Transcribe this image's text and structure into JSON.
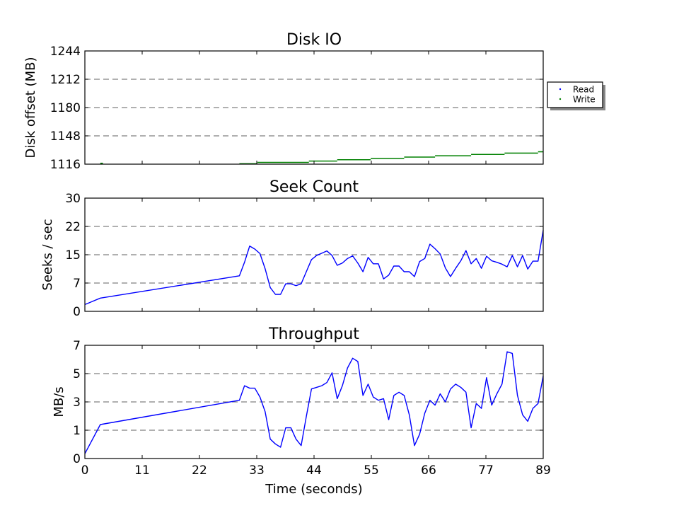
{
  "chart_data": [
    {
      "type": "scatter",
      "title": "Disk IO",
      "ylabel": "Disk offset (MB)",
      "xlabel": "",
      "xlim": [
        0,
        89
      ],
      "ylim": [
        1116,
        1244
      ],
      "yticks": [
        "1116",
        "1148",
        "1180",
        "1212",
        "1244"
      ],
      "ytick_values": [
        1116,
        1148,
        1180,
        1212,
        1244
      ],
      "grid": true,
      "legend": {
        "placement": "outside-right",
        "entries": [
          {
            "label": "Read",
            "color": "#0000ff"
          },
          {
            "label": "Write",
            "color": "#008000"
          }
        ]
      },
      "series": [
        {
          "name": "Read",
          "color": "#0000ff",
          "segments": []
        },
        {
          "name": "Write",
          "color": "#008000",
          "segments": [
            [
              3.0,
              3.5,
              1117.0
            ],
            [
              3.1,
              3.4,
              1116.2
            ],
            [
              30.0,
              33.5,
              1116.5
            ],
            [
              33.5,
              43.5,
              1118.0
            ],
            [
              43.5,
              49.0,
              1119.5
            ],
            [
              49.0,
              55.5,
              1121.0
            ],
            [
              55.5,
              62.0,
              1122.5
            ],
            [
              62.0,
              68.0,
              1124.0
            ],
            [
              68.0,
              75.0,
              1125.5
            ],
            [
              75.0,
              81.5,
              1127.0
            ],
            [
              81.5,
              88.0,
              1128.5
            ],
            [
              88.0,
              89.0,
              1130.0
            ]
          ]
        }
      ]
    },
    {
      "type": "line",
      "title": "Seek Count",
      "ylabel": "Seeks / sec",
      "xlabel": "",
      "xlim": [
        0,
        89
      ],
      "ylim": [
        0,
        30
      ],
      "yticks": [
        "0",
        "7",
        "15",
        "22",
        "30"
      ],
      "ytick_values": [
        0,
        7.5,
        15,
        22.5,
        30
      ],
      "grid": true,
      "series": [
        {
          "color": "#0000ff",
          "x": [
            0,
            3,
            30,
            31,
            32,
            33,
            34,
            35,
            36,
            37,
            38,
            39,
            40,
            41,
            42,
            43,
            44,
            45,
            46,
            47,
            48,
            49,
            50,
            51,
            52,
            53,
            54,
            55,
            56,
            57,
            58,
            59,
            60,
            61,
            62,
            63,
            64,
            65,
            66,
            67,
            68,
            69,
            70,
            71,
            72,
            73,
            74,
            75,
            76,
            77,
            78,
            79,
            80,
            81,
            82,
            83,
            84,
            85,
            86,
            87,
            88,
            89
          ],
          "y": [
            1.8,
            3.5,
            9.4,
            13,
            17.3,
            16.5,
            15.3,
            11.3,
            6.3,
            4.5,
            4.5,
            7.3,
            7.3,
            6.8,
            7.3,
            10.5,
            13.7,
            14.8,
            15.4,
            16,
            14.8,
            12.2,
            12.8,
            14,
            14.7,
            12.8,
            10.5,
            14.3,
            12.6,
            12.6,
            8.6,
            9.6,
            12,
            12,
            10.5,
            10.5,
            9.2,
            13.2,
            14,
            17.8,
            16.6,
            15.2,
            11.5,
            9.2,
            11.4,
            13.4,
            16.1,
            12.6,
            14,
            11.4,
            14.6,
            13.4,
            13,
            12.5,
            11.8,
            14.8,
            11.8,
            14.8,
            11.2,
            13.3,
            13.3,
            21.5
          ]
        }
      ]
    },
    {
      "type": "line",
      "title": "Throughput",
      "ylabel": "MB/s",
      "xlabel": "Time (seconds)",
      "xlim": [
        0,
        89
      ],
      "ylim": [
        0,
        7
      ],
      "xticks": [
        "0",
        "11",
        "22",
        "33",
        "44",
        "55",
        "66",
        "77",
        "89"
      ],
      "xtick_values": [
        0,
        11.125,
        22.25,
        33.375,
        44.5,
        55.625,
        66.75,
        77.875,
        89
      ],
      "yticks": [
        "0",
        "1",
        "3",
        "5",
        "7"
      ],
      "ytick_values": [
        0,
        1.75,
        3.5,
        5.25,
        7
      ],
      "grid": true,
      "series": [
        {
          "color": "#0000ff",
          "x": [
            0,
            3,
            30,
            31,
            32,
            33,
            34,
            35,
            36,
            37,
            38,
            39,
            40,
            41,
            42,
            43,
            44,
            45,
            46,
            47,
            48,
            49,
            50,
            51,
            52,
            53,
            54,
            55,
            56,
            57,
            58,
            59,
            60,
            61,
            62,
            63,
            64,
            65,
            66,
            67,
            68,
            69,
            70,
            71,
            72,
            73,
            74,
            75,
            76,
            77,
            78,
            79,
            80,
            81,
            82,
            83,
            84,
            85,
            86,
            87,
            88,
            89
          ],
          "y": [
            0.3,
            2.1,
            3.6,
            4.5,
            4.35,
            4.35,
            3.8,
            2.9,
            1.2,
            0.9,
            0.7,
            1.9,
            1.9,
            1.2,
            0.8,
            2.6,
            4.3,
            4.4,
            4.5,
            4.7,
            5.3,
            3.7,
            4.5,
            5.6,
            6.2,
            6.0,
            3.9,
            4.6,
            3.8,
            3.6,
            3.7,
            2.4,
            3.9,
            4.1,
            3.9,
            2.7,
            0.8,
            1.5,
            2.8,
            3.6,
            3.3,
            4.0,
            3.5,
            4.3,
            4.6,
            4.4,
            4.1,
            1.9,
            3.4,
            3.1,
            5.0,
            3.3,
            4.0,
            4.6,
            6.6,
            6.5,
            3.9,
            2.7,
            2.3,
            3.1,
            3.4,
            5.1
          ]
        }
      ]
    }
  ]
}
